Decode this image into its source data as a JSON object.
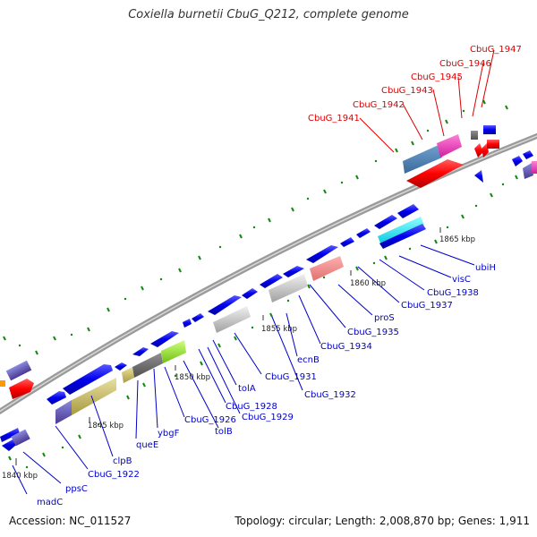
{
  "title": "Coxiella burnetii CbuG_Q212, complete genome",
  "accession_text": "Accession: NC_011527",
  "topology_text": "Topology: circular; Length: 2,008,870 bp; Genes: 1,911",
  "colors": {
    "backbone": "#888888",
    "gene_blue": "#0000ee",
    "gene_red": "#ff0000",
    "label_blue": "#0000cc",
    "label_red": "#dd0000",
    "tick_green": "#118811"
  },
  "kbp_labels": [
    "1840 kbp",
    "1845 kbp",
    "1850 kbp",
    "1855 kbp",
    "1860 kbp",
    "1865 kbp"
  ],
  "gene_labels_blue": [
    "madC",
    "ppsC",
    "CbuG_1922",
    "clpB",
    "queE",
    "ybgF",
    "CbuG_1926",
    "tolB",
    "CbuG_1928",
    "CbuG_1929",
    "tolA",
    "CbuG_1931",
    "CbuG_1932",
    "ecnB",
    "CbuG_1934",
    "CbuG_1935",
    "proS",
    "CbuG_1937",
    "CbuG_1938",
    "visC",
    "ubiH"
  ],
  "gene_labels_red": [
    "CbuG_1941",
    "CbuG_1942",
    "CbuG_1943",
    "CbuG_1945",
    "CbuG_1946",
    "CbuG_1947"
  ]
}
